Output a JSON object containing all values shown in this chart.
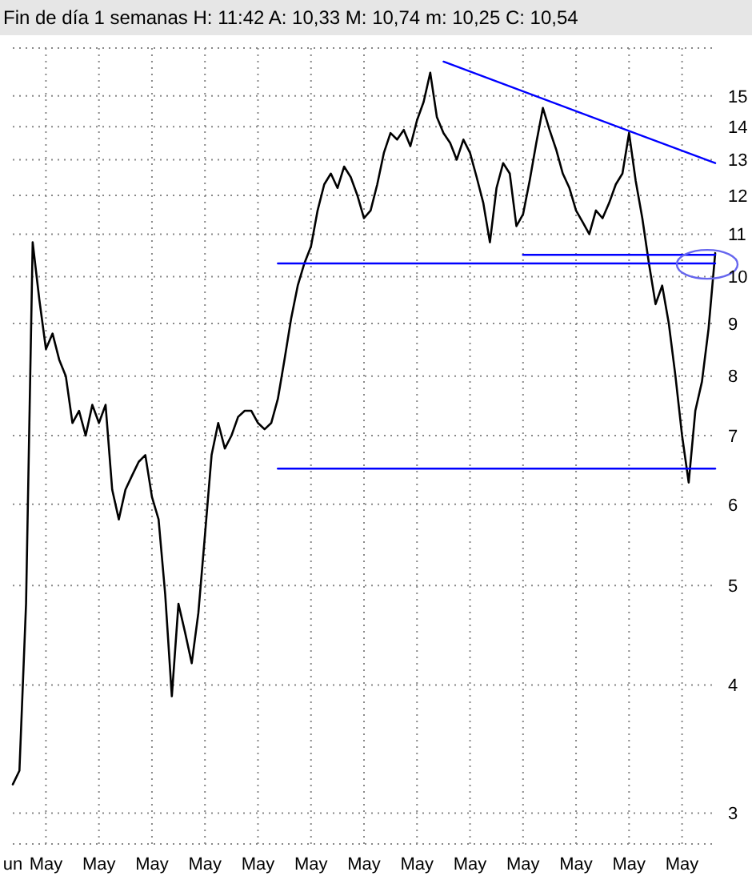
{
  "chart_data": {
    "type": "line",
    "title": "Fin de día 1 semanas  H: 11:42  A: 10,33  M: 10,74  m: 10,25  C: 10,54",
    "categories": [
      "un",
      null,
      null,
      null,
      null,
      "May",
      null,
      null,
      null,
      null,
      null,
      null,
      null,
      "May",
      null,
      null,
      null,
      null,
      null,
      null,
      null,
      "May",
      null,
      null,
      null,
      null,
      null,
      null,
      null,
      "May",
      null,
      null,
      null,
      null,
      null,
      null,
      null,
      "May",
      null,
      null,
      null,
      null,
      null,
      null,
      null,
      "May",
      null,
      null,
      null,
      null,
      null,
      null,
      null,
      "May",
      null,
      null,
      null,
      null,
      null,
      null,
      null,
      "May",
      null,
      null,
      null,
      null,
      null,
      null,
      null,
      "May",
      null,
      null,
      null,
      null,
      null,
      null,
      null,
      "May",
      null,
      null,
      null,
      null,
      null,
      null,
      null,
      "May",
      null,
      null,
      null,
      null,
      null,
      null,
      null,
      "May",
      null,
      null,
      null,
      null,
      null,
      null,
      null,
      "May",
      null,
      null,
      null,
      null,
      null
    ],
    "series": [
      {
        "color": "#000000",
        "values": [
          3.2,
          3.3,
          4.8,
          10.8,
          9.5,
          8.5,
          8.8,
          8.3,
          8.0,
          7.2,
          7.4,
          7.0,
          7.5,
          7.2,
          7.5,
          6.2,
          5.8,
          6.2,
          6.4,
          6.6,
          6.7,
          6.1,
          5.8,
          4.9,
          3.9,
          4.8,
          4.5,
          4.2,
          4.7,
          5.6,
          6.7,
          7.2,
          6.8,
          7.0,
          7.3,
          7.4,
          7.4,
          7.2,
          7.1,
          7.2,
          7.6,
          8.3,
          9.1,
          9.8,
          10.3,
          10.7,
          11.6,
          12.3,
          12.6,
          12.2,
          12.8,
          12.5,
          12.0,
          11.4,
          11.6,
          12.3,
          13.2,
          13.8,
          13.6,
          13.9,
          13.4,
          14.2,
          14.8,
          15.8,
          14.3,
          13.8,
          13.5,
          13.0,
          13.6,
          13.2,
          12.5,
          11.8,
          10.8,
          12.2,
          12.9,
          12.6,
          11.2,
          11.5,
          12.4,
          13.5,
          14.6,
          13.9,
          13.3,
          12.6,
          12.2,
          11.6,
          11.3,
          11.0,
          11.6,
          11.4,
          11.8,
          12.3,
          12.6,
          13.8,
          12.4,
          11.4,
          10.3,
          9.4,
          9.8,
          9.0,
          8.0,
          7.0,
          6.3,
          7.4,
          7.9,
          8.9,
          10.54
        ]
      },
      {
        "color": "#0000ff",
        "values": [
          null,
          null,
          null,
          null,
          null,
          null,
          null,
          null,
          null,
          null,
          null,
          null,
          null,
          null,
          null,
          null,
          null,
          null,
          null,
          null,
          null,
          null,
          null,
          null,
          null,
          null,
          null,
          null,
          null,
          null,
          null,
          null,
          null,
          null,
          null,
          null,
          null,
          null,
          null,
          null,
          null,
          null,
          null,
          null,
          null,
          null,
          null,
          null,
          null,
          null,
          null,
          null,
          null,
          null,
          null,
          null,
          null,
          null,
          null,
          null,
          null,
          null,
          null,
          null,
          null,
          16.2,
          null,
          null,
          null,
          null,
          null,
          null,
          null,
          null,
          null,
          null,
          null,
          null,
          null,
          null,
          null,
          null,
          null,
          null,
          null,
          null,
          null,
          null,
          null,
          null,
          null,
          null,
          null,
          null,
          null,
          null,
          null,
          null,
          null,
          null,
          null,
          null,
          null,
          null,
          null,
          null,
          12.9
        ]
      },
      {
        "color": "#0000ff",
        "values": [
          null,
          null,
          null,
          null,
          null,
          null,
          null,
          null,
          null,
          null,
          null,
          null,
          null,
          null,
          null,
          null,
          null,
          null,
          null,
          null,
          null,
          null,
          null,
          null,
          null,
          null,
          null,
          null,
          null,
          null,
          null,
          null,
          null,
          null,
          null,
          null,
          null,
          null,
          null,
          null,
          10.3,
          null,
          null,
          null,
          null,
          null,
          null,
          null,
          null,
          null,
          null,
          null,
          null,
          null,
          null,
          null,
          null,
          null,
          null,
          null,
          null,
          null,
          null,
          null,
          null,
          null,
          null,
          null,
          null,
          null,
          null,
          null,
          null,
          null,
          null,
          null,
          null,
          null,
          null,
          null,
          null,
          null,
          null,
          null,
          null,
          null,
          null,
          null,
          null,
          null,
          null,
          null,
          null,
          null,
          null,
          null,
          null,
          null,
          null,
          null,
          null,
          null,
          null,
          null,
          null,
          null,
          10.3
        ]
      },
      {
        "color": "#0000ff",
        "values": [
          null,
          null,
          null,
          null,
          null,
          null,
          null,
          null,
          null,
          null,
          null,
          null,
          null,
          null,
          null,
          null,
          null,
          null,
          null,
          null,
          null,
          null,
          null,
          null,
          null,
          null,
          null,
          null,
          null,
          null,
          null,
          null,
          null,
          null,
          null,
          null,
          null,
          null,
          null,
          null,
          null,
          null,
          null,
          null,
          null,
          null,
          null,
          null,
          null,
          null,
          null,
          null,
          null,
          null,
          null,
          null,
          null,
          null,
          null,
          null,
          null,
          null,
          null,
          null,
          null,
          null,
          null,
          null,
          null,
          null,
          null,
          null,
          null,
          null,
          null,
          null,
          null,
          10.5,
          null,
          null,
          null,
          null,
          null,
          null,
          null,
          null,
          null,
          null,
          null,
          null,
          null,
          null,
          null,
          null,
          null,
          null,
          null,
          null,
          null,
          null,
          null,
          null,
          null,
          null,
          null,
          null,
          10.5
        ]
      },
      {
        "color": "#0000ff",
        "values": [
          null,
          null,
          null,
          null,
          null,
          null,
          null,
          null,
          null,
          null,
          null,
          null,
          null,
          null,
          null,
          null,
          null,
          null,
          null,
          null,
          null,
          null,
          null,
          null,
          null,
          null,
          null,
          null,
          null,
          null,
          null,
          null,
          null,
          null,
          null,
          null,
          null,
          null,
          null,
          null,
          6.5,
          null,
          null,
          null,
          null,
          null,
          null,
          null,
          null,
          null,
          null,
          null,
          null,
          null,
          null,
          null,
          null,
          null,
          null,
          null,
          null,
          null,
          null,
          null,
          null,
          null,
          null,
          null,
          null,
          null,
          null,
          null,
          null,
          null,
          null,
          null,
          null,
          null,
          null,
          null,
          null,
          null,
          null,
          null,
          null,
          null,
          null,
          null,
          null,
          null,
          null,
          null,
          null,
          null,
          null,
          null,
          null,
          null,
          null,
          null,
          null,
          null,
          null,
          null,
          null,
          null,
          6.5
        ]
      }
    ],
    "log": true,
    "ylim": [
      2.8,
      16.7
    ],
    "yticks": [
      3,
      4,
      5,
      6,
      7,
      8,
      9,
      10,
      11,
      12,
      13,
      14,
      15
    ],
    "grid": true,
    "marker": "none",
    "line_style": "solid"
  }
}
